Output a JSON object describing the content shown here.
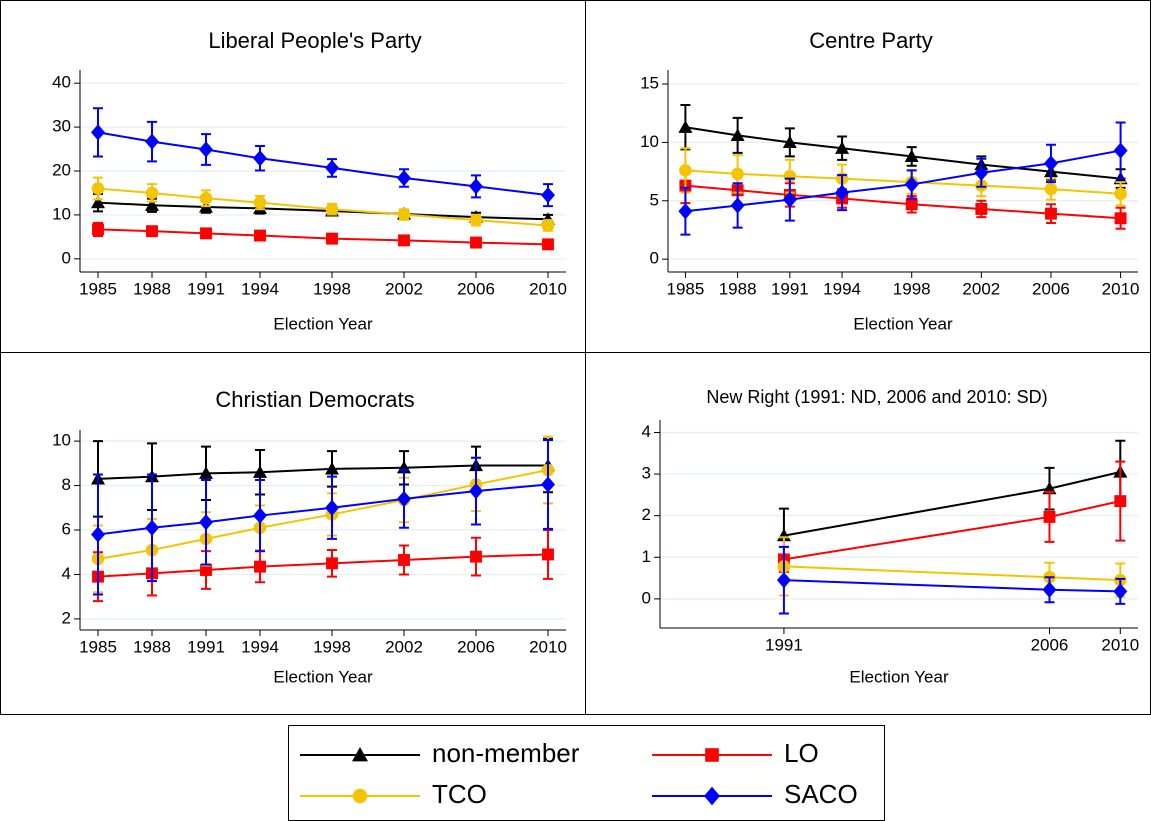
{
  "chart_data": [
    {
      "type": "line",
      "title": "Liberal People's Party",
      "xlabel": "Election Year",
      "x": [
        1985,
        1988,
        1991,
        1994,
        1998,
        2002,
        2006,
        2010
      ],
      "xlim": [
        1984,
        2011
      ],
      "xticks": [
        1985,
        1988,
        1991,
        1994,
        1998,
        2002,
        2006,
        2010
      ],
      "ylim": [
        -3,
        43
      ],
      "yticks": [
        0,
        10,
        20,
        30,
        40
      ],
      "grid": true,
      "series": [
        {
          "values": [
            12.8,
            12.2,
            11.8,
            11.5,
            10.9,
            10.2,
            9.5,
            9.0
          ],
          "errors": [
            2,
            1.5,
            1.3,
            1.2,
            1,
            1,
            1,
            1
          ]
        },
        {
          "values": [
            6.7,
            6.3,
            5.8,
            5.3,
            4.6,
            4.2,
            3.7,
            3.3
          ],
          "errors": [
            1.5,
            1,
            1,
            0.8,
            0.7,
            0.7,
            0.7,
            0.7
          ]
        },
        {
          "values": [
            16,
            15,
            13.8,
            12.8,
            11.3,
            10.1,
            8.8,
            7.6
          ],
          "errors": [
            2.5,
            2,
            1.8,
            1.5,
            1.2,
            1.2,
            1.2,
            1.2
          ]
        },
        {
          "values": [
            28.8,
            26.7,
            24.9,
            22.9,
            20.7,
            18.4,
            16.5,
            14.5
          ],
          "errors": [
            5.5,
            4.5,
            3.5,
            2.8,
            2,
            2,
            2.5,
            2.5
          ]
        }
      ]
    },
    {
      "type": "line",
      "title": "Centre Party",
      "xlabel": "Election Year",
      "x": [
        1985,
        1988,
        1991,
        1994,
        1998,
        2002,
        2006,
        2010
      ],
      "xlim": [
        1984,
        2011
      ],
      "xticks": [
        1985,
        1988,
        1991,
        1994,
        1998,
        2002,
        2006,
        2010
      ],
      "ylim": [
        -1.1,
        16.2
      ],
      "yticks": [
        0,
        5,
        10,
        15
      ],
      "grid": true,
      "series": [
        {
          "values": [
            11.3,
            10.6,
            10.0,
            9.5,
            8.8,
            8.1,
            7.5,
            6.9
          ],
          "errors": [
            1.9,
            1.5,
            1.2,
            1,
            0.8,
            0.7,
            0.7,
            0.8
          ]
        },
        {
          "values": [
            6.3,
            5.9,
            5.5,
            5.2,
            4.7,
            4.3,
            3.9,
            3.5
          ],
          "errors": [
            1.5,
            1.2,
            1,
            0.8,
            0.7,
            0.7,
            0.8,
            0.9
          ]
        },
        {
          "values": [
            7.6,
            7.3,
            7.1,
            6.9,
            6.6,
            6.3,
            6.0,
            5.6
          ],
          "errors": [
            1.9,
            1.6,
            1.4,
            1.2,
            1,
            0.9,
            0.9,
            1
          ]
        },
        {
          "values": [
            4.1,
            4.6,
            5.1,
            5.7,
            6.4,
            7.4,
            8.2,
            9.3
          ],
          "errors": [
            2,
            1.9,
            1.8,
            1.5,
            1.2,
            1.2,
            1.6,
            2.4
          ]
        }
      ]
    },
    {
      "type": "line",
      "title": "Christian Democrats",
      "xlabel": "Election Year",
      "x": [
        1985,
        1988,
        1991,
        1994,
        1998,
        2002,
        2006,
        2010
      ],
      "xlim": [
        1984,
        2011
      ],
      "xticks": [
        1985,
        1988,
        1991,
        1994,
        1998,
        2002,
        2006,
        2010
      ],
      "ylim": [
        1.5,
        10.5
      ],
      "yticks": [
        2,
        4,
        6,
        8,
        10
      ],
      "grid": true,
      "series": [
        {
          "values": [
            8.3,
            8.4,
            8.55,
            8.6,
            8.75,
            8.8,
            8.9,
            8.9
          ],
          "errors": [
            1.7,
            1.5,
            1.2,
            1,
            0.8,
            0.75,
            0.85,
            1.2
          ]
        },
        {
          "values": [
            3.9,
            4.05,
            4.2,
            4.35,
            4.5,
            4.65,
            4.8,
            4.9
          ],
          "errors": [
            1.1,
            1,
            0.85,
            0.7,
            0.6,
            0.65,
            0.85,
            1.1
          ]
        },
        {
          "values": [
            4.7,
            5.1,
            5.6,
            6.1,
            6.7,
            7.35,
            8.05,
            8.7
          ],
          "errors": [
            1.5,
            1.4,
            1.2,
            1,
            0.95,
            1,
            1.2,
            1.5
          ]
        },
        {
          "values": [
            5.8,
            6.1,
            6.35,
            6.65,
            7.0,
            7.4,
            7.75,
            8.05
          ],
          "errors": [
            2.7,
            2.4,
            1.9,
            1.6,
            1.4,
            1.3,
            1.5,
            2.0
          ]
        }
      ]
    },
    {
      "type": "line",
      "title": "New Right (1991: ND, 2006 and 2010: SD)",
      "xlabel": "Election Year",
      "x": [
        1991,
        2006,
        2010
      ],
      "xlim": [
        1984,
        2011
      ],
      "xticks": [
        1991,
        2006,
        2010
      ],
      "ylim": [
        -0.7,
        4.3
      ],
      "yticks": [
        0,
        1,
        2,
        3,
        4
      ],
      "grid": true,
      "series": [
        {
          "values": [
            1.52,
            2.65,
            3.05
          ],
          "errors": [
            0.65,
            0.5,
            0.75
          ]
        },
        {
          "values": [
            0.95,
            1.97,
            2.35
          ],
          "errors": [
            0.3,
            0.6,
            0.95
          ]
        },
        {
          "values": [
            0.78,
            0.52,
            0.45
          ],
          "errors": [
            0.7,
            0.35,
            0.4
          ]
        },
        {
          "values": [
            0.45,
            0.22,
            0.18
          ],
          "errors": [
            0.8,
            0.3,
            0.3
          ]
        }
      ]
    }
  ],
  "legend": {
    "entries": [
      {
        "name": "non-member",
        "color": "#000000",
        "marker": "triangle"
      },
      {
        "name": "LO",
        "color": "#ff0000",
        "marker": "square"
      },
      {
        "name": "TCO",
        "color": "#f5c400",
        "marker": "circle"
      },
      {
        "name": "SACO",
        "color": "#0000ff",
        "marker": "diamond"
      }
    ]
  }
}
